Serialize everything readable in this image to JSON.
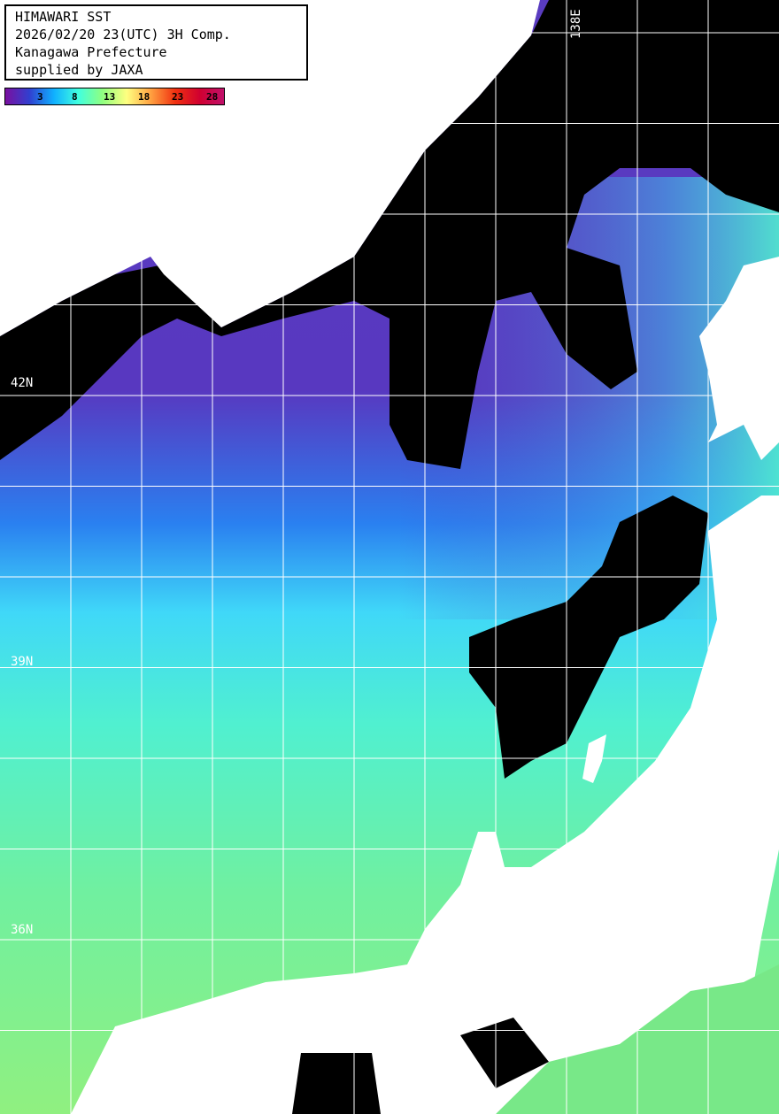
{
  "title": {
    "lines": [
      "HIMAWARI SST",
      "2026/02/20 23(UTC) 3H Comp.",
      "Kanagawa Prefecture",
      "supplied by JAXA"
    ]
  },
  "legend": {
    "ticks": [
      "3",
      "8",
      "13",
      "18",
      "23",
      "28"
    ],
    "colors": [
      "#7a10a0",
      "#3040d0",
      "#10b0ff",
      "#40ffe0",
      "#90ff80",
      "#ffff80",
      "#ffa040",
      "#f03010",
      "#d00030",
      "#c0106a"
    ],
    "unit_implied": "°C"
  },
  "grid_labels": {
    "lat": [
      "42N",
      "39N",
      "36N"
    ],
    "lon": [
      "138E"
    ]
  },
  "colors": {
    "land": "#ffffff",
    "cloud": "#000000",
    "grid": "#ffffff"
  }
}
